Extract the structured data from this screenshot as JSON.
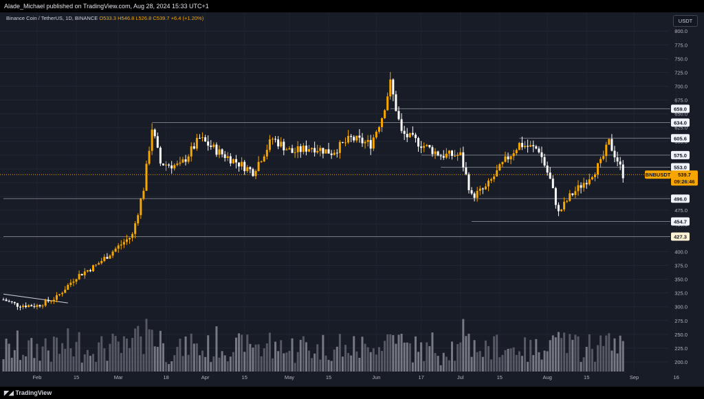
{
  "header": {
    "publisher": "Alade_Michael published on TradingView.com, Aug 28, 2024 15:33 UTC+1"
  },
  "legend": {
    "symbol": "Binance Coin / TetherUS, 1D, BINANCE",
    "o": "O533.3",
    "h": "H546.8",
    "l": "L526.8",
    "c": "C539.7",
    "chg": "+6.4 (+1.20%)"
  },
  "currency_badge": "USDT",
  "footer": {
    "brand": "TradingView"
  },
  "colors": {
    "up": "#f7a600",
    "down": "#ffffff",
    "bg": "#181c27",
    "line": "#787b86"
  },
  "chart_data": {
    "type": "candlestick",
    "title": "Binance Coin / TetherUS, 1D, BINANCE",
    "y_axis": {
      "range": [
        187,
        810
      ],
      "ticks": [
        "200.0",
        "225.0",
        "250.0",
        "275.0",
        "300.0",
        "325.0",
        "350.0",
        "375.0",
        "400.0",
        "425.0",
        "450.0",
        "475.0",
        "500.0",
        "525.0",
        "550.0",
        "575.0",
        "600.0",
        "625.0",
        "650.0",
        "675.0",
        "700.0",
        "725.0",
        "750.0",
        "775.0",
        "800.0"
      ]
    },
    "x_axis": {
      "ticks": [
        "Feb",
        "15",
        "Mar",
        "18",
        "Apr",
        "15",
        "May",
        "15",
        "Jun",
        "17",
        "Jul",
        "15",
        "Aug",
        "15",
        "Sep",
        "16"
      ]
    },
    "horizontal_levels": [
      659.0,
      634.0,
      605.6,
      575.0,
      553.0,
      496.0,
      454.7,
      427.3
    ],
    "highlight_level": 427.3,
    "current_price_label": {
      "symbol": "BNBUSDT",
      "price": "539.7",
      "countdown": "09:26:46"
    },
    "trend_line": {
      "from": {
        "date": "2024-01-20",
        "value": 323
      },
      "to": {
        "date": "2024-02-12",
        "value": 307
      }
    },
    "price_path_approx": [
      [
        "2024-01-20",
        313
      ],
      [
        "2024-01-25",
        303
      ],
      [
        "2024-02-01",
        302
      ],
      [
        "2024-02-08",
        317
      ],
      [
        "2024-02-15",
        355
      ],
      [
        "2024-02-22",
        375
      ],
      [
        "2024-02-29",
        405
      ],
      [
        "2024-03-06",
        430
      ],
      [
        "2024-03-10",
        515
      ],
      [
        "2024-03-13",
        625
      ],
      [
        "2024-03-16",
        560
      ],
      [
        "2024-03-23",
        555
      ],
      [
        "2024-03-30",
        605
      ],
      [
        "2024-04-06",
        580
      ],
      [
        "2024-04-13",
        560
      ],
      [
        "2024-04-18",
        545
      ],
      [
        "2024-04-25",
        605
      ],
      [
        "2024-05-02",
        580
      ],
      [
        "2024-05-09",
        590
      ],
      [
        "2024-05-16",
        580
      ],
      [
        "2024-05-23",
        605
      ],
      [
        "2024-05-30",
        595
      ],
      [
        "2024-06-03",
        645
      ],
      [
        "2024-06-06",
        705
      ],
      [
        "2024-06-10",
        615
      ],
      [
        "2024-06-17",
        595
      ],
      [
        "2024-06-24",
        575
      ],
      [
        "2024-07-01",
        575
      ],
      [
        "2024-07-05",
        500
      ],
      [
        "2024-07-10",
        515
      ],
      [
        "2024-07-17",
        565
      ],
      [
        "2024-07-22",
        595
      ],
      [
        "2024-07-29",
        585
      ],
      [
        "2024-08-02",
        530
      ],
      [
        "2024-08-05",
        470
      ],
      [
        "2024-08-09",
        500
      ],
      [
        "2024-08-15",
        530
      ],
      [
        "2024-08-20",
        560
      ],
      [
        "2024-08-23",
        598
      ],
      [
        "2024-08-26",
        566
      ],
      [
        "2024-08-28",
        539.7
      ]
    ]
  }
}
